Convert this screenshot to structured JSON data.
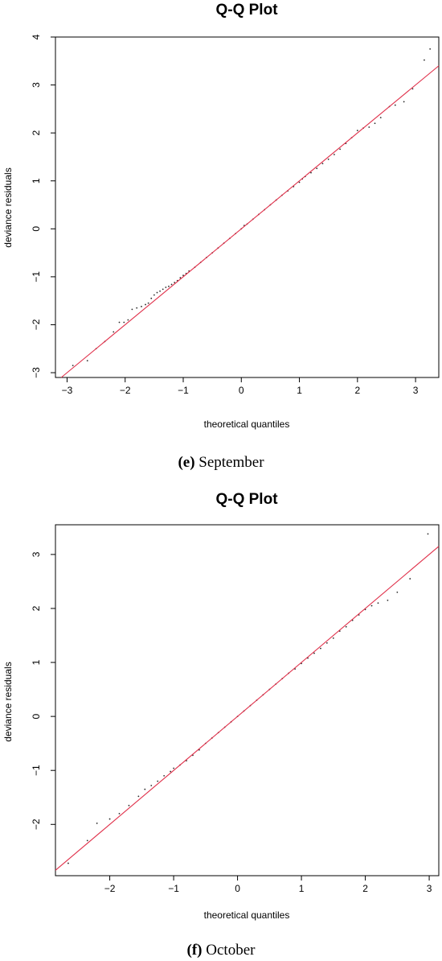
{
  "charts": [
    {
      "title": "Q-Q Plot",
      "xlabel": "theoretical quantiles",
      "ylabel": "deviance residuals",
      "caption_letter": "(e)",
      "caption_text": " September",
      "reference_line_color": "#e0304a"
    },
    {
      "title": "Q-Q Plot",
      "xlabel": "theoretical quantiles",
      "ylabel": "deviance residuals",
      "caption_letter": "(f)",
      "caption_text": " October",
      "reference_line_color": "#e0304a"
    }
  ],
  "chart_data": [
    {
      "type": "scatter",
      "title": "Q-Q Plot",
      "xlabel": "theoretical quantiles",
      "ylabel": "deviance residuals",
      "xlim": [
        -3.2,
        3.4
      ],
      "ylim": [
        -3.1,
        4.0
      ],
      "xticks": [
        -3,
        -2,
        -1,
        0,
        1,
        2,
        3
      ],
      "yticks": [
        -3,
        -2,
        -1,
        0,
        1,
        2,
        3,
        4
      ],
      "reference_line": {
        "slope": 1.0,
        "intercept": 0.0
      },
      "series": [
        {
          "x": [
            -2.9,
            -2.65,
            -2.5,
            -2.35,
            -2.2,
            -2.1,
            -2.02,
            -1.95,
            -1.88,
            -1.8,
            -1.72,
            -1.65,
            -1.6,
            -1.55,
            -1.5,
            -1.45,
            -1.4,
            -1.35,
            -1.3,
            -1.25,
            -1.2,
            -1.15,
            -1.1,
            -1.05,
            -1.0,
            -0.95,
            -0.9,
            -0.8,
            -0.7,
            -0.6,
            -0.5,
            -0.4,
            -0.3,
            -0.2,
            -0.1,
            0.0,
            0.05,
            0.1,
            0.2,
            0.3,
            0.4,
            0.5,
            0.6,
            0.7,
            0.8,
            0.9,
            1.0,
            1.05,
            1.1,
            1.2,
            1.3,
            1.4,
            1.5,
            1.6,
            1.7,
            1.8,
            1.9,
            2.0,
            2.1,
            2.2,
            2.3,
            2.4,
            2.55,
            2.65,
            2.8,
            2.95,
            3.15,
            3.25
          ],
          "y": [
            -2.85,
            -2.75,
            -2.5,
            -2.35,
            -2.15,
            -1.95,
            -1.95,
            -1.9,
            -1.68,
            -1.65,
            -1.62,
            -1.58,
            -1.55,
            -1.45,
            -1.38,
            -1.33,
            -1.3,
            -1.26,
            -1.22,
            -1.2,
            -1.16,
            -1.12,
            -1.08,
            -1.02,
            -0.97,
            -0.93,
            -0.88,
            -0.8,
            -0.7,
            -0.6,
            -0.5,
            -0.4,
            -0.3,
            -0.2,
            -0.1,
            0.0,
            0.07,
            0.1,
            0.2,
            0.3,
            0.4,
            0.5,
            0.6,
            0.7,
            0.79,
            0.88,
            0.97,
            1.04,
            1.09,
            1.17,
            1.26,
            1.36,
            1.45,
            1.55,
            1.66,
            1.78,
            1.9,
            2.05,
            2.1,
            2.12,
            2.2,
            2.32,
            2.55,
            2.58,
            2.65,
            2.92,
            3.52,
            3.75
          ]
        }
      ]
    },
    {
      "type": "scatter",
      "title": "Q-Q Plot",
      "xlabel": "theoretical quantiles",
      "ylabel": "deviance residuals",
      "xlim": [
        -2.85,
        3.15
      ],
      "ylim": [
        -2.95,
        3.55
      ],
      "xticks": [
        -2,
        -1,
        0,
        1,
        2,
        3
      ],
      "yticks": [
        -2,
        -1,
        0,
        1,
        2,
        3
      ],
      "reference_line": {
        "slope": 1.0,
        "intercept": 0.0
      },
      "series": [
        {
          "x": [
            -2.65,
            -2.35,
            -2.2,
            -2.0,
            -1.85,
            -1.7,
            -1.55,
            -1.45,
            -1.35,
            -1.25,
            -1.15,
            -1.05,
            -1.0,
            -0.9,
            -0.8,
            -0.7,
            -0.6,
            -0.5,
            -0.4,
            -0.3,
            -0.2,
            -0.1,
            0.0,
            0.1,
            0.2,
            0.3,
            0.4,
            0.5,
            0.6,
            0.7,
            0.8,
            0.9,
            1.0,
            1.1,
            1.2,
            1.3,
            1.4,
            1.5,
            1.6,
            1.7,
            1.8,
            1.9,
            2.0,
            2.1,
            2.2,
            2.35,
            2.5,
            2.7,
            2.98
          ],
          "y": [
            -2.72,
            -2.3,
            -1.98,
            -1.9,
            -1.8,
            -1.65,
            -1.48,
            -1.35,
            -1.28,
            -1.2,
            -1.1,
            -1.02,
            -0.96,
            -0.9,
            -0.82,
            -0.72,
            -0.62,
            -0.5,
            -0.4,
            -0.3,
            -0.2,
            -0.1,
            0.0,
            0.1,
            0.2,
            0.3,
            0.4,
            0.5,
            0.6,
            0.7,
            0.8,
            0.88,
            0.98,
            1.08,
            1.17,
            1.26,
            1.36,
            1.45,
            1.58,
            1.66,
            1.78,
            1.88,
            1.98,
            2.05,
            2.1,
            2.15,
            2.3,
            2.55,
            3.38
          ]
        }
      ]
    }
  ]
}
